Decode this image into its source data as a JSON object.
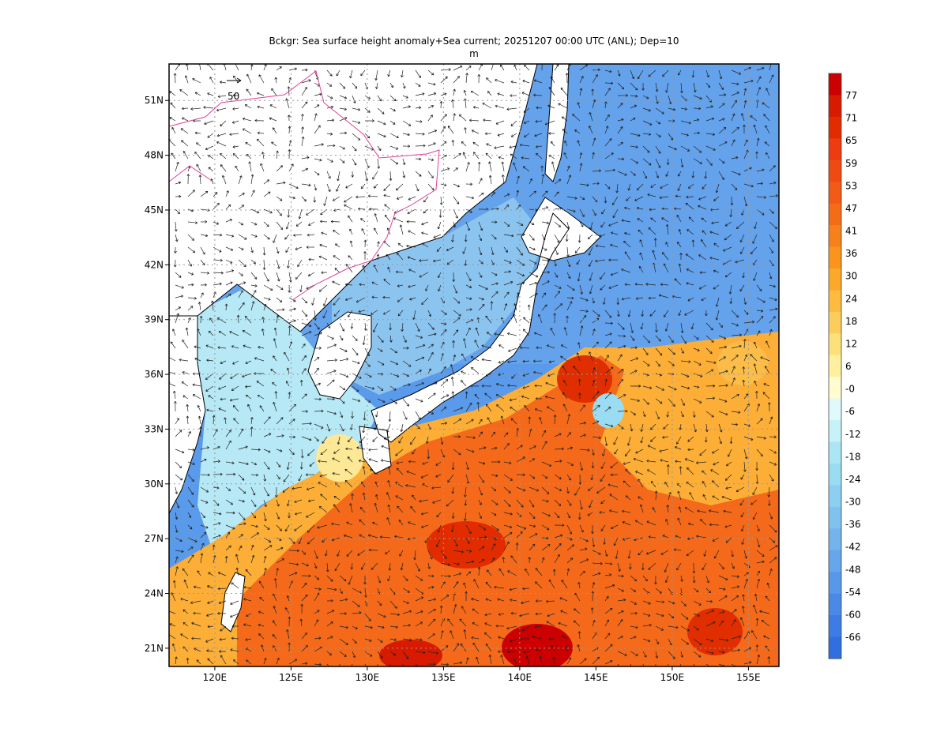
{
  "title": {
    "line1": "Bckgr: Sea surface height anomaly+Sea current; 20251207 00:00 UTC (ANL); Dep=10",
    "line2": "m"
  },
  "map": {
    "lon_range": [
      117,
      157
    ],
    "lat_range": [
      20,
      53
    ],
    "lat_ticks": [
      "51N",
      "48N",
      "45N",
      "42N",
      "39N",
      "36N",
      "33N",
      "30N",
      "27N",
      "24N",
      "21N"
    ],
    "lat_tick_values": [
      51,
      48,
      45,
      42,
      39,
      36,
      33,
      30,
      27,
      24,
      21
    ],
    "lon_ticks": [
      "120E",
      "125E",
      "130E",
      "135E",
      "140E",
      "145E",
      "150E",
      "155E"
    ],
    "lon_tick_values": [
      120,
      125,
      130,
      135,
      140,
      145,
      150,
      155
    ],
    "gridlines": "dotted",
    "land_color": "#ffffff",
    "coastline_color": "#000000",
    "border_color": "#e0409a",
    "reference_vector_label": "50"
  },
  "colorbar": {
    "labels": [
      "77",
      "71",
      "65",
      "59",
      "53",
      "47",
      "41",
      "36",
      "30",
      "24",
      "18",
      "12",
      "6",
      "-0",
      "-6",
      "-12",
      "-18",
      "-24",
      "-30",
      "-36",
      "-42",
      "-48",
      "-54",
      "-60",
      "-66"
    ],
    "colors": [
      "#cc0000",
      "#d81a00",
      "#e22c00",
      "#ee3b10",
      "#f04a14",
      "#f25a18",
      "#f46c18",
      "#f8801a",
      "#fa941c",
      "#fca82a",
      "#fdbb40",
      "#fdcd5c",
      "#fee07a",
      "#fff0a0",
      "#fffcd0",
      "#e0fafc",
      "#c6f2f8",
      "#ace6f4",
      "#9adcf2",
      "#8ccff0",
      "#80c2ee",
      "#74b4ec",
      "#66a6ea",
      "#5898e8",
      "#4a8ae6",
      "#3c7ce4",
      "#2f6fe0"
    ]
  }
}
